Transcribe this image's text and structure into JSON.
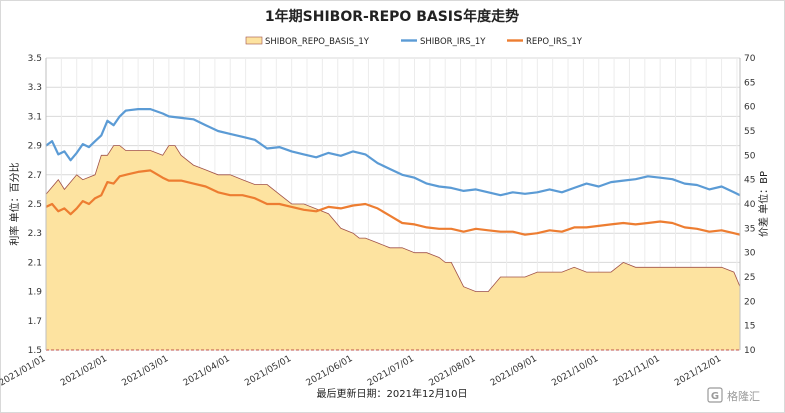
{
  "chart_data": {
    "type": "line",
    "title": "1年期SHIBOR-REPO BASIS年度走势",
    "ylabel_left": "利率 单位：百分比",
    "ylabel_right": "价差 单位：BP",
    "footnote": "最后更新日期：2021年12月10日",
    "watermark": "格隆汇",
    "ylim_left": [
      1.5,
      3.5
    ],
    "yticks_left": [
      "1.5",
      "1.7",
      "1.9",
      "2.1",
      "2.3",
      "2.5",
      "2.7",
      "2.9",
      "3.1",
      "3.3",
      "3.5"
    ],
    "ylim_right": [
      10,
      70
    ],
    "yticks_right": [
      "10",
      "15",
      "20",
      "25",
      "30",
      "35",
      "40",
      "45",
      "50",
      "55",
      "60",
      "65",
      "70"
    ],
    "xlim": [
      0,
      11.3
    ],
    "xticks": [
      "2021/01/01",
      "2021/02/01",
      "2021/03/01",
      "2021/04/01",
      "2021/05/01",
      "2021/06/01",
      "2021/07/01",
      "2021/08/01",
      "2021/09/01",
      "2021/10/01",
      "2021/11/01",
      "2021/12/01"
    ],
    "grid": true,
    "legend_position": "top",
    "series": [
      {
        "name": "SHIBOR_REPO_BASIS_1Y",
        "kind": "area",
        "axis": "right",
        "color": "#fde3a0",
        "edge_color": "#a0524a",
        "x": [
          0,
          0.2,
          0.3,
          0.5,
          0.6,
          0.8,
          0.9,
          1.0,
          1.1,
          1.2,
          1.3,
          1.5,
          1.7,
          1.9,
          2.0,
          2.1,
          2.2,
          2.4,
          2.6,
          2.8,
          3.0,
          3.2,
          3.4,
          3.6,
          3.8,
          4.0,
          4.2,
          4.4,
          4.6,
          4.8,
          5.0,
          5.1,
          5.2,
          5.4,
          5.6,
          5.8,
          6.0,
          6.2,
          6.4,
          6.5,
          6.6,
          6.8,
          7.0,
          7.2,
          7.4,
          7.6,
          7.8,
          8.0,
          8.2,
          8.4,
          8.6,
          8.8,
          9.0,
          9.2,
          9.4,
          9.6,
          9.8,
          10.0,
          10.2,
          10.4,
          10.6,
          10.8,
          11.0,
          11.2,
          11.3
        ],
        "values": [
          42,
          45,
          43,
          46,
          45,
          46,
          50,
          50,
          52,
          52,
          51,
          51,
          51,
          50,
          52,
          52,
          50,
          48,
          47,
          46,
          46,
          45,
          44,
          44,
          42,
          40,
          40,
          39,
          38,
          35,
          34,
          33,
          33,
          32,
          31,
          31,
          30,
          30,
          29,
          28,
          28,
          23,
          22,
          22,
          25,
          25,
          25,
          26,
          26,
          26,
          27,
          26,
          26,
          26,
          28,
          27,
          27,
          27,
          27,
          27,
          27,
          27,
          27,
          26,
          23
        ]
      },
      {
        "name": "SHIBOR_IRS_1Y",
        "kind": "line",
        "axis": "left",
        "color": "#5b9bd5",
        "x": [
          0,
          0.1,
          0.2,
          0.3,
          0.4,
          0.5,
          0.6,
          0.7,
          0.8,
          0.9,
          1.0,
          1.1,
          1.2,
          1.3,
          1.5,
          1.7,
          1.9,
          2.0,
          2.2,
          2.4,
          2.6,
          2.8,
          3.0,
          3.2,
          3.4,
          3.6,
          3.8,
          4.0,
          4.2,
          4.4,
          4.6,
          4.8,
          5.0,
          5.2,
          5.4,
          5.6,
          5.8,
          6.0,
          6.2,
          6.4,
          6.6,
          6.8,
          7.0,
          7.2,
          7.4,
          7.6,
          7.8,
          8.0,
          8.2,
          8.4,
          8.6,
          8.8,
          9.0,
          9.2,
          9.4,
          9.6,
          9.8,
          10.0,
          10.2,
          10.4,
          10.6,
          10.8,
          11.0,
          11.2,
          11.3
        ],
        "values": [
          2.9,
          2.93,
          2.84,
          2.86,
          2.8,
          2.85,
          2.91,
          2.89,
          2.93,
          2.97,
          3.07,
          3.04,
          3.1,
          3.14,
          3.15,
          3.15,
          3.12,
          3.1,
          3.09,
          3.08,
          3.04,
          3.0,
          2.98,
          2.96,
          2.94,
          2.88,
          2.89,
          2.86,
          2.84,
          2.82,
          2.85,
          2.83,
          2.86,
          2.84,
          2.78,
          2.74,
          2.7,
          2.68,
          2.64,
          2.62,
          2.61,
          2.59,
          2.6,
          2.58,
          2.56,
          2.58,
          2.57,
          2.58,
          2.6,
          2.58,
          2.61,
          2.64,
          2.62,
          2.65,
          2.66,
          2.67,
          2.69,
          2.68,
          2.67,
          2.64,
          2.63,
          2.6,
          2.62,
          2.58,
          2.56
        ]
      },
      {
        "name": "REPO_IRS_1Y",
        "kind": "line",
        "axis": "left",
        "color": "#ed7d31",
        "x": [
          0,
          0.1,
          0.2,
          0.3,
          0.4,
          0.5,
          0.6,
          0.7,
          0.8,
          0.9,
          1.0,
          1.1,
          1.2,
          1.3,
          1.5,
          1.7,
          1.9,
          2.0,
          2.2,
          2.4,
          2.6,
          2.8,
          3.0,
          3.2,
          3.4,
          3.6,
          3.8,
          4.0,
          4.2,
          4.4,
          4.6,
          4.8,
          5.0,
          5.2,
          5.4,
          5.6,
          5.8,
          6.0,
          6.2,
          6.4,
          6.6,
          6.8,
          7.0,
          7.2,
          7.4,
          7.6,
          7.8,
          8.0,
          8.2,
          8.4,
          8.6,
          8.8,
          9.0,
          9.2,
          9.4,
          9.6,
          9.8,
          10.0,
          10.2,
          10.4,
          10.6,
          10.8,
          11.0,
          11.2,
          11.3
        ],
        "values": [
          2.48,
          2.5,
          2.45,
          2.47,
          2.43,
          2.47,
          2.52,
          2.5,
          2.54,
          2.56,
          2.65,
          2.64,
          2.69,
          2.7,
          2.72,
          2.73,
          2.68,
          2.66,
          2.66,
          2.64,
          2.62,
          2.58,
          2.56,
          2.56,
          2.54,
          2.5,
          2.5,
          2.48,
          2.46,
          2.45,
          2.48,
          2.47,
          2.49,
          2.5,
          2.47,
          2.42,
          2.37,
          2.36,
          2.34,
          2.33,
          2.33,
          2.31,
          2.33,
          2.32,
          2.31,
          2.31,
          2.29,
          2.3,
          2.32,
          2.31,
          2.34,
          2.34,
          2.35,
          2.36,
          2.37,
          2.36,
          2.37,
          2.38,
          2.37,
          2.34,
          2.33,
          2.31,
          2.32,
          2.3,
          2.29
        ]
      }
    ]
  }
}
